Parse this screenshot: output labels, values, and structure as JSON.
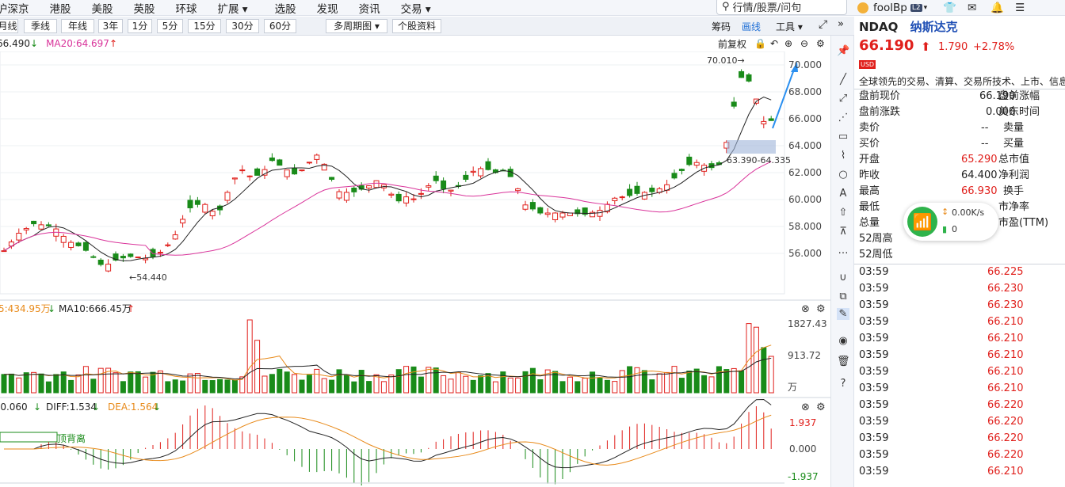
{
  "nav": [
    "沪深京",
    "港股",
    "美股",
    "英股",
    "环球",
    "扩展 ▾",
    "选股",
    "发现",
    "资讯",
    "交易 ▾"
  ],
  "search": {
    "placeholder": "行情/股票/问句"
  },
  "rtop": {
    "user": "foolBp",
    "badge": "L2"
  },
  "toolbar": {
    "items": [
      "月线",
      "季线",
      "年线",
      "3年",
      "1分",
      "5分",
      "15分",
      "30分",
      "60分",
      "多周期图 ▾",
      "个股资料"
    ],
    "right": [
      "筹码",
      "画线",
      "工具 ▾"
    ]
  },
  "info": {
    "ma5": "66.490",
    "ma20": "MA20:64.697",
    "adj": "前复权"
  },
  "price_axis": [
    "70.000",
    "68.000",
    "66.000",
    "64.000",
    "62.000",
    "60.000",
    "58.000",
    "56.000"
  ],
  "annot": {
    "high": "70.010→",
    "low": "←54.440",
    "box": "63.390-64.335"
  },
  "vol": {
    "ma5": "5:434.95万",
    "ma10": "MA10:666.45万",
    "axis": [
      "1827.43",
      "913.72",
      "万"
    ]
  },
  "macd": {
    "macd": "-0.060",
    "diff": "DIFF:1.534",
    "dea": "DEA:1.564",
    "label": "顶背离",
    "axis": [
      "1.937",
      "0.000",
      "-1.937"
    ]
  },
  "stock": {
    "code": "NDAQ",
    "name": "纳斯达克",
    "price": "66.190",
    "chg": "1.790",
    "pct": "+2.78%",
    "cur": "USD",
    "desc": "全球领先的交易、清算、交易所技术、上市、信息"
  },
  "quote": [
    {
      "l": "盘前现价",
      "v": "66.190",
      "r": "盘前涨幅",
      "c": ""
    },
    {
      "l": "盘前涨跌",
      "v": "0.000",
      "r": "美东时间",
      "c": ""
    },
    {
      "l": "卖价",
      "v": "--",
      "r": "卖量",
      "c": ""
    },
    {
      "l": "买价",
      "v": "--",
      "r": "买量",
      "c": ""
    },
    {
      "l": "开盘",
      "v": "65.290",
      "r": "总市值",
      "c": "red"
    },
    {
      "l": "昨收",
      "v": "64.400",
      "r": "净利润",
      "c": ""
    },
    {
      "l": "最高",
      "v": "66.930",
      "r": "换手",
      "c": "red"
    },
    {
      "l": "最低",
      "v": "",
      "r": "市净率",
      "c": ""
    },
    {
      "l": "总量",
      "v": "",
      "r": "市盈(TTM)",
      "c": ""
    },
    {
      "l": "52周高",
      "v": "",
      "r": "",
      "c": ""
    },
    {
      "l": "52周低",
      "v": "",
      "r": "",
      "c": ""
    }
  ],
  "ticks": [
    {
      "t": "03:59",
      "p": "66.225"
    },
    {
      "t": "03:59",
      "p": "66.230"
    },
    {
      "t": "03:59",
      "p": "66.230"
    },
    {
      "t": "03:59",
      "p": "66.210"
    },
    {
      "t": "03:59",
      "p": "66.210"
    },
    {
      "t": "03:59",
      "p": "66.210"
    },
    {
      "t": "03:59",
      "p": "66.210"
    },
    {
      "t": "03:59",
      "p": "66.210"
    },
    {
      "t": "03:59",
      "p": "66.220"
    },
    {
      "t": "03:59",
      "p": "66.220"
    },
    {
      "t": "03:59",
      "p": "66.220"
    },
    {
      "t": "03:59",
      "p": "66.220"
    },
    {
      "t": "03:59",
      "p": "66.210"
    }
  ],
  "net": {
    "speed": "0.00K/s",
    "count": "0"
  },
  "colors": {
    "up": "#e0201c",
    "down": "#198b19",
    "ma20": "#d9339a",
    "ma5": "#222222",
    "vma": "#e88a1a"
  }
}
